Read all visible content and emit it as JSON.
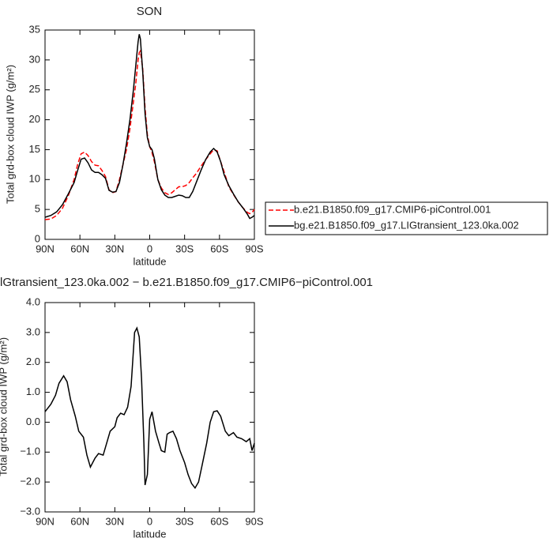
{
  "chart_data": [
    {
      "type": "line",
      "title": "SON",
      "xlabel": "latitude",
      "ylabel": "Total grd-box cloud IWP (g/m²)",
      "x": [
        90,
        85,
        80,
        75,
        70,
        65,
        62,
        59,
        56,
        53,
        50,
        47,
        44,
        41,
        38,
        35,
        32,
        29,
        26,
        23,
        20,
        17,
        14,
        12,
        10,
        9,
        8,
        6,
        4,
        2,
        0,
        -2,
        -4,
        -7,
        -10,
        -13,
        -16,
        -19,
        -22,
        -25,
        -28,
        -31,
        -34,
        -37,
        -40,
        -44,
        -48,
        -52,
        -55,
        -58,
        -61,
        -64,
        -68,
        -72,
        -76,
        -80,
        -84,
        -86,
        -88,
        -90
      ],
      "series": [
        {
          "name": "b.e21.B1850.f09_g17.CMIP6-piControl.001",
          "color": "#ff0000",
          "dash": true,
          "values": [
            3.3,
            3.4,
            4.0,
            5.2,
            7.3,
            10,
            12.5,
            14.3,
            14.6,
            14.0,
            13.0,
            12.4,
            12.3,
            11.5,
            10.5,
            8.3,
            7.8,
            8.0,
            10.0,
            12.5,
            15,
            18.5,
            23,
            26,
            30,
            31.2,
            31.5,
            28.5,
            22,
            17.5,
            15.5,
            14.5,
            13,
            10,
            8.6,
            7.8,
            7.5,
            7.8,
            8.3,
            8.8,
            8.8,
            9.0,
            9.5,
            10.3,
            11.0,
            12.2,
            13.3,
            14.3,
            15.0,
            14.8,
            13.0,
            11.3,
            8.8,
            7.5,
            6.3,
            5.3,
            4.5,
            4.3,
            4.5,
            5.0
          ]
        },
        {
          "name": "bg.e21.B1850.f09_g17.LIGtransient_123.0ka.002",
          "color": "#000000",
          "dash": false,
          "values": [
            3.7,
            4.0,
            4.6,
            5.8,
            7.6,
            9.5,
            11.5,
            13.4,
            13.6,
            12.8,
            11.6,
            11.2,
            11.2,
            10.8,
            10.2,
            8.2,
            7.9,
            8.0,
            9.5,
            12.5,
            16,
            20,
            25,
            29,
            33,
            34.3,
            33.5,
            28,
            21,
            17,
            15.5,
            15,
            13.5,
            10,
            8.3,
            7.4,
            7.0,
            7.0,
            7.2,
            7.4,
            7.3,
            7.0,
            7.0,
            8.0,
            9.5,
            11.5,
            13.3,
            14.6,
            15.2,
            14.6,
            13.0,
            10.8,
            9.0,
            7.6,
            6.3,
            5.3,
            4.2,
            3.5,
            3.7,
            4.0
          ]
        }
      ],
      "xlim": [
        90,
        -90
      ],
      "xticks": [
        {
          "value": 90,
          "label": "90N"
        },
        {
          "value": 60,
          "label": "60N"
        },
        {
          "value": 30,
          "label": "30N"
        },
        0,
        {
          "value": -30,
          "label": "30S"
        },
        {
          "value": -60,
          "label": "60S"
        },
        {
          "value": -90,
          "label": "90S"
        }
      ],
      "ylim": [
        0,
        35
      ],
      "yticks": [
        0,
        5,
        10,
        15,
        20,
        25,
        30,
        35
      ],
      "legend": "right"
    },
    {
      "type": "line",
      "title": "lGtransient_123.0ka.002 − b.e21.B1850.f09_g17.CMIP6−piControl.001",
      "xlabel": "latitude",
      "ylabel": "Total grd-box cloud IWP (g/m²)",
      "x": [
        90,
        85,
        81,
        78,
        74,
        71,
        68,
        64,
        61,
        57,
        54,
        51,
        47,
        44,
        40,
        37,
        34,
        30,
        28,
        25,
        22,
        19,
        16,
        13,
        11,
        9,
        7,
        5,
        4,
        2,
        0,
        -2,
        -5,
        -8,
        -10,
        -13,
        -15,
        -17,
        -20,
        -23,
        -26,
        -30,
        -33,
        -36,
        -39,
        -42,
        -45,
        -49,
        -52,
        -55,
        -58,
        -61,
        -65,
        -68,
        -72,
        -75,
        -79,
        -83,
        -86,
        -88,
        -90
      ],
      "color": "#000000",
      "values": [
        0.35,
        0.6,
        0.9,
        1.3,
        1.55,
        1.35,
        0.75,
        0.2,
        -0.3,
        -0.5,
        -1.1,
        -1.5,
        -1.2,
        -1.05,
        -1.1,
        -0.7,
        -0.3,
        -0.15,
        0.15,
        0.3,
        0.25,
        0.5,
        1.2,
        3.0,
        3.15,
        2.85,
        1.45,
        -0.7,
        -2.1,
        -1.75,
        0.1,
        0.35,
        -0.3,
        -0.7,
        -0.95,
        -1.0,
        -0.4,
        -0.35,
        -0.3,
        -0.55,
        -0.95,
        -1.35,
        -1.75,
        -2.05,
        -2.2,
        -2.0,
        -1.45,
        -0.7,
        0,
        0.35,
        0.38,
        0.2,
        -0.3,
        -0.45,
        -0.35,
        -0.5,
        -0.55,
        -0.65,
        -0.55,
        -0.95,
        -0.7
      ],
      "xlim": [
        90,
        -90
      ],
      "xticks": [
        {
          "value": 90,
          "label": "90N"
        },
        {
          "value": 60,
          "label": "60N"
        },
        {
          "value": 30,
          "label": "30N"
        },
        0,
        {
          "value": -30,
          "label": "30S"
        },
        {
          "value": -60,
          "label": "60S"
        },
        {
          "value": -90,
          "label": "90S"
        }
      ],
      "ylim": [
        -3,
        4
      ],
      "yticks": [
        {
          "value": -3,
          "label": "−3.0"
        },
        {
          "value": -2,
          "label": "−2.0"
        },
        {
          "value": -1,
          "label": "−1.0"
        },
        {
          "value": 0,
          "label": "0.0"
        },
        {
          "value": 1,
          "label": "1.0"
        },
        {
          "value": 2,
          "label": "2.0"
        },
        {
          "value": 3,
          "label": "3.0"
        },
        {
          "value": 4,
          "label": "4.0"
        }
      ]
    }
  ]
}
